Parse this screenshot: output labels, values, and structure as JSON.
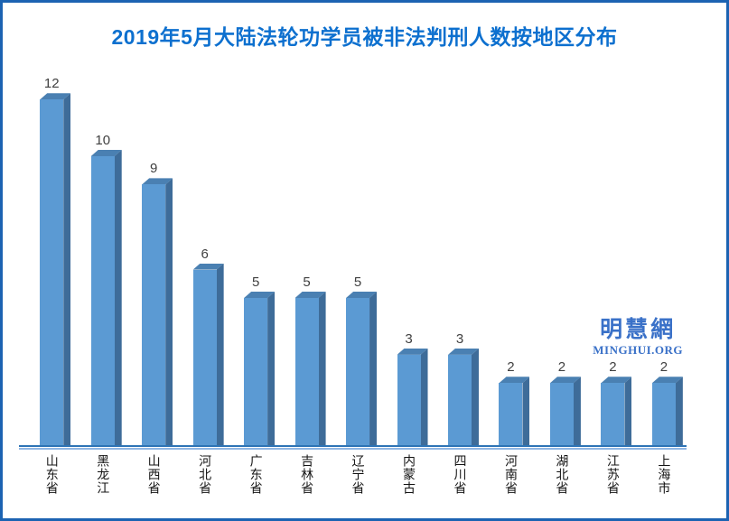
{
  "title": "2019年5月大陆法轮功学员被非法判刑人数按地区分布",
  "watermark": {
    "line1": "明慧網",
    "line2": "MINGHUI.ORG"
  },
  "colors": {
    "frame_border": "#1c63b2",
    "title": "#0d70cf",
    "bar_front": "#5b9ad3",
    "bar_side": "#3e6c99",
    "bar_top": "#4a80b2",
    "axis_dark": "#2e74b5",
    "axis_light": "#8fb6e4",
    "value_label": "#404040",
    "watermark_blue": "#3a71c8"
  },
  "chart_data": {
    "type": "bar",
    "style": "3d-column",
    "title": "2019年5月大陆法轮功学员被非法判刑人数按地区分布",
    "categories": [
      "山东省",
      "黑龙江",
      "山西省",
      "河北省",
      "广东省",
      "吉林省",
      "辽宁省",
      "内蒙古",
      "四川省",
      "河南省",
      "湖北省",
      "江苏省",
      "上海市"
    ],
    "values": [
      12,
      10,
      9,
      6,
      5,
      5,
      5,
      3,
      3,
      2,
      2,
      2,
      2
    ],
    "xlabel": "",
    "ylabel": "",
    "ylim": [
      0,
      12
    ],
    "grid": false,
    "legend": "none",
    "data_labels_shown": true
  }
}
